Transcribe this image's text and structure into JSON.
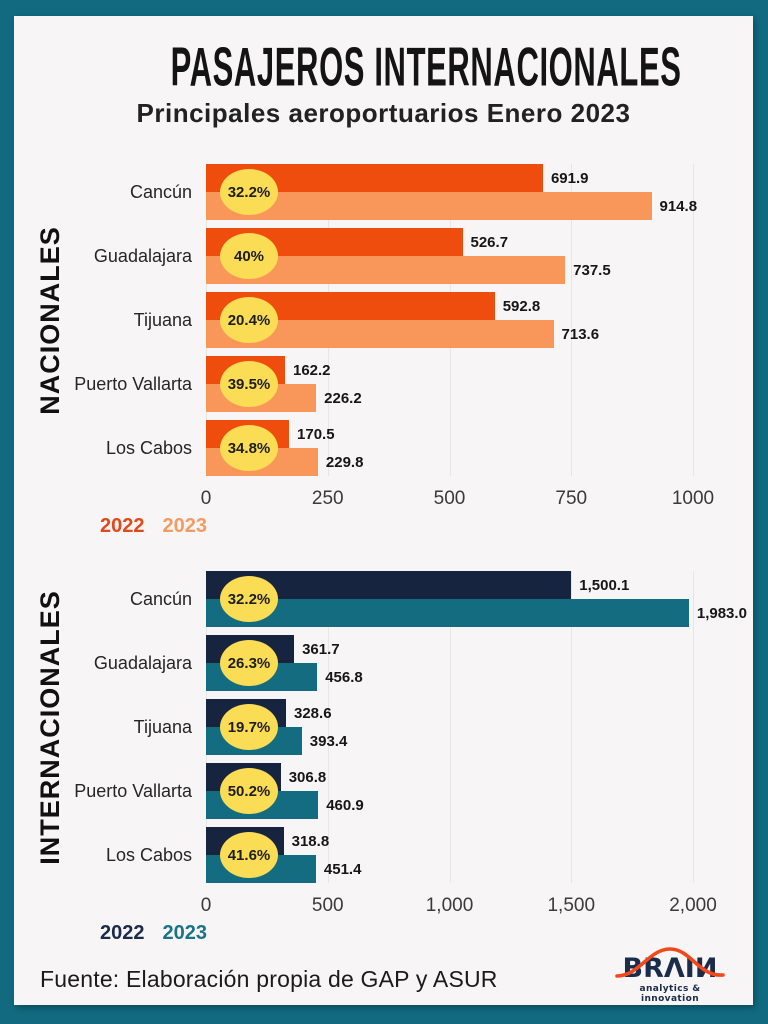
{
  "page": {
    "title": "PASAJEROS INTERNACIONALES",
    "subtitle": "Principales aeroportuarios Enero 2023",
    "source": "Fuente: Elaboración propia de GAP y ASUR",
    "border_color": "#116A80",
    "background_color": "#F7F5F5"
  },
  "logo": {
    "text": "BRΛIИ",
    "tagline": "analytics & innovation",
    "navy": "#1B2B4A",
    "orange": "#F2491C"
  },
  "chart_data": [
    {
      "type": "bar",
      "orientation": "horizontal",
      "section_label": "NACIONALES",
      "categories": [
        "Cancún",
        "Guadalajara",
        "Tijuana",
        "Puerto Vallarta",
        "Los Cabos"
      ],
      "series": [
        {
          "name": "2022",
          "color": "#EE4D0D",
          "values": [
            691.9,
            526.7,
            592.8,
            162.2,
            170.5
          ]
        },
        {
          "name": "2023",
          "color": "#F9975A",
          "values": [
            914.8,
            737.5,
            713.6,
            226.2,
            229.8
          ]
        }
      ],
      "value_labels": [
        [
          "691.9",
          "914.8"
        ],
        [
          "526.7",
          "737.5"
        ],
        [
          "592.8",
          "713.6"
        ],
        [
          "162.2",
          "226.2"
        ],
        [
          "170.5",
          "229.8"
        ]
      ],
      "growth_labels": [
        "32.2%",
        "40%",
        "20.4%",
        "39.5%",
        "34.8%"
      ],
      "growth_badge_color": "#FBDC55",
      "xlim": [
        0,
        1000
      ],
      "ticks": [
        "0",
        "250",
        "500",
        "750",
        "1000"
      ],
      "grid": true,
      "legend_position": "bottom-left"
    },
    {
      "type": "bar",
      "orientation": "horizontal",
      "section_label": "INTERNACIONALES",
      "categories": [
        "Cancún",
        "Guadalajara",
        "Tijuana",
        "Puerto Vallarta",
        "Los Cabos"
      ],
      "series": [
        {
          "name": "2022",
          "color": "#16243F",
          "values": [
            1500.1,
            361.7,
            328.6,
            306.8,
            318.8
          ]
        },
        {
          "name": "2023",
          "color": "#136C80",
          "values": [
            1983.0,
            456.8,
            393.4,
            460.9,
            451.4
          ]
        }
      ],
      "value_labels": [
        [
          "1,500.1",
          "1,983.0"
        ],
        [
          "361.7",
          "456.8"
        ],
        [
          "328.6",
          "393.4"
        ],
        [
          "306.8",
          "460.9"
        ],
        [
          "318.8",
          "451.4"
        ]
      ],
      "growth_labels": [
        "32.2%",
        "26.3%",
        "19.7%",
        "50.2%",
        "41.6%"
      ],
      "growth_badge_color": "#FBDC55",
      "xlim": [
        0,
        2000
      ],
      "ticks": [
        "0",
        "500",
        "1,000",
        "1,500",
        "2,000"
      ],
      "grid": true,
      "legend_position": "bottom-left"
    }
  ]
}
